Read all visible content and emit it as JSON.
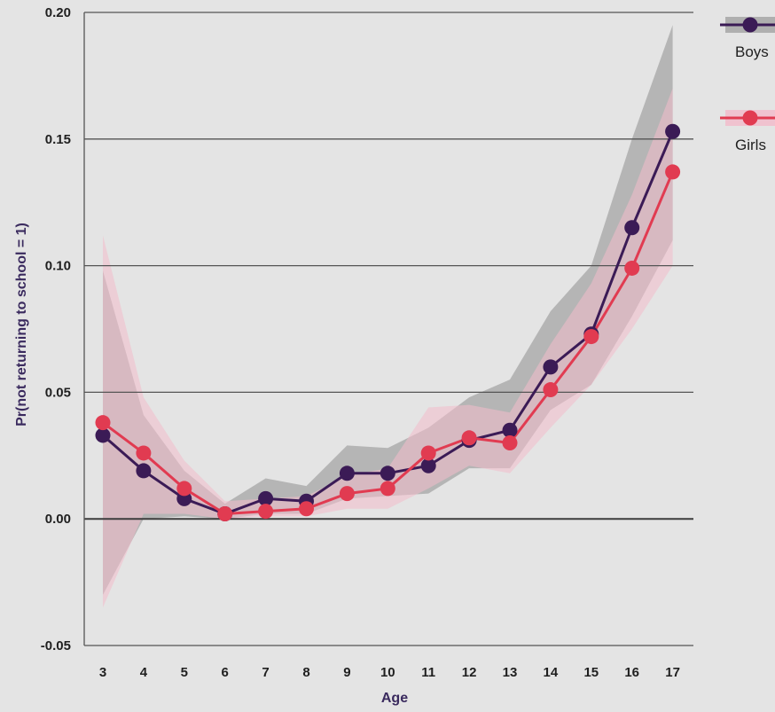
{
  "chart_data": {
    "type": "line",
    "xlabel": "Age",
    "ylabel": "Pr(not returning to school = 1)",
    "ylim": [
      -0.05,
      0.2
    ],
    "yticks": [
      "0.20",
      "0.15",
      "0.10",
      "0.05",
      "0.00",
      "-0.05"
    ],
    "ytick_values": [
      0.2,
      0.15,
      0.1,
      0.05,
      0.0,
      -0.05
    ],
    "x": [
      3,
      4,
      5,
      6,
      7,
      8,
      9,
      10,
      11,
      12,
      13,
      14,
      15,
      16,
      17
    ],
    "xtick_labels": [
      "3",
      "4",
      "5",
      "6",
      "7",
      "8",
      "9",
      "10",
      "11",
      "12",
      "13",
      "14",
      "15",
      "16",
      "17"
    ],
    "grid": "horizontal",
    "legend_position": "right",
    "series": [
      {
        "name": "Boys",
        "color": "#3b1b56",
        "band_color": "#a6a6a6",
        "values": [
          0.033,
          0.019,
          0.008,
          0.002,
          0.008,
          0.007,
          0.018,
          0.018,
          0.021,
          0.031,
          0.035,
          0.06,
          0.073,
          0.115,
          0.153
        ],
        "lower": [
          -0.03,
          0.0,
          0.001,
          0.0,
          0.002,
          0.002,
          0.008,
          0.009,
          0.01,
          0.02,
          0.02,
          0.043,
          0.053,
          0.08,
          0.11
        ],
        "upper": [
          0.098,
          0.041,
          0.019,
          0.006,
          0.016,
          0.013,
          0.029,
          0.028,
          0.036,
          0.048,
          0.055,
          0.082,
          0.1,
          0.15,
          0.195
        ]
      },
      {
        "name": "Girls",
        "color": "#e13b51",
        "band_color": "#f2bccb",
        "values": [
          0.038,
          0.026,
          0.012,
          0.002,
          0.003,
          0.004,
          0.01,
          0.012,
          0.026,
          0.032,
          0.03,
          0.051,
          0.072,
          0.099,
          0.137
        ],
        "lower": [
          -0.035,
          0.002,
          0.002,
          0.0,
          0.001,
          0.001,
          0.004,
          0.004,
          0.012,
          0.021,
          0.018,
          0.036,
          0.053,
          0.075,
          0.1
        ],
        "upper": [
          0.112,
          0.048,
          0.023,
          0.007,
          0.008,
          0.009,
          0.017,
          0.02,
          0.044,
          0.045,
          0.042,
          0.069,
          0.093,
          0.128,
          0.17
        ]
      }
    ]
  }
}
